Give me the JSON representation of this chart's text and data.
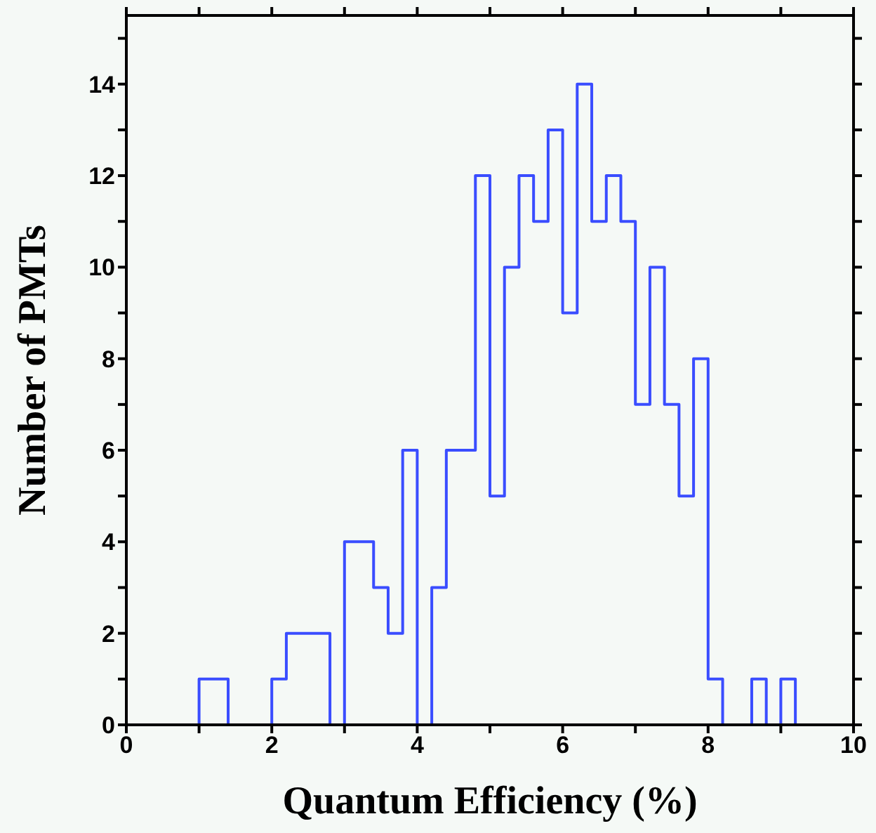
{
  "chart_data": {
    "type": "histogram",
    "xlabel": "Quantum Efficiency (%)",
    "ylabel": "Number of PMTs",
    "bins": [
      0,
      0.2,
      0.4,
      0.6,
      0.8,
      1.0,
      1.2,
      1.4,
      1.6,
      1.8,
      2.0,
      2.2,
      2.4,
      2.6,
      2.8,
      3.0,
      3.2,
      3.4,
      3.6,
      3.8,
      4.0,
      4.2,
      4.4,
      4.6,
      4.8,
      5.0,
      5.2,
      5.4,
      5.6,
      5.8,
      6.0,
      6.2,
      6.4,
      6.6,
      6.8,
      7.0,
      7.2,
      7.4,
      7.6,
      7.8,
      8.0,
      8.2,
      8.4,
      8.6,
      8.8,
      9.0,
      9.2,
      9.4,
      9.6,
      9.8,
      10.0
    ],
    "values": [
      0,
      0,
      0,
      0,
      0,
      1,
      1,
      0,
      0,
      0,
      1,
      2,
      2,
      2,
      0,
      4,
      4,
      3,
      2,
      6,
      0,
      3,
      6,
      6,
      12,
      5,
      10,
      12,
      11,
      13,
      9,
      14,
      11,
      12,
      11,
      7,
      10,
      7,
      5,
      8,
      1,
      0,
      0,
      1,
      0,
      1,
      0,
      0,
      0,
      0
    ],
    "color": "#3a4dff",
    "xlim": [
      0,
      10
    ],
    "xticks": [
      0,
      {
        "value": 1,
        "label": null
      },
      2,
      {
        "value": 3,
        "label": null
      },
      4,
      {
        "value": 5,
        "label": null
      },
      6,
      {
        "value": 7,
        "label": null
      },
      8,
      {
        "value": 9,
        "label": null
      },
      10
    ],
    "ylim": [
      0,
      15.5
    ],
    "yticks": [
      0,
      {
        "value": 1,
        "label": null
      },
      2,
      {
        "value": 3,
        "label": null
      },
      4,
      {
        "value": 5,
        "label": null
      },
      6,
      {
        "value": 7,
        "label": null
      },
      8,
      {
        "value": 9,
        "label": null
      },
      10,
      {
        "value": 11,
        "label": null
      },
      12,
      {
        "value": 13,
        "label": null
      },
      14,
      {
        "value": 15,
        "label": null
      }
    ],
    "grid": false
  }
}
